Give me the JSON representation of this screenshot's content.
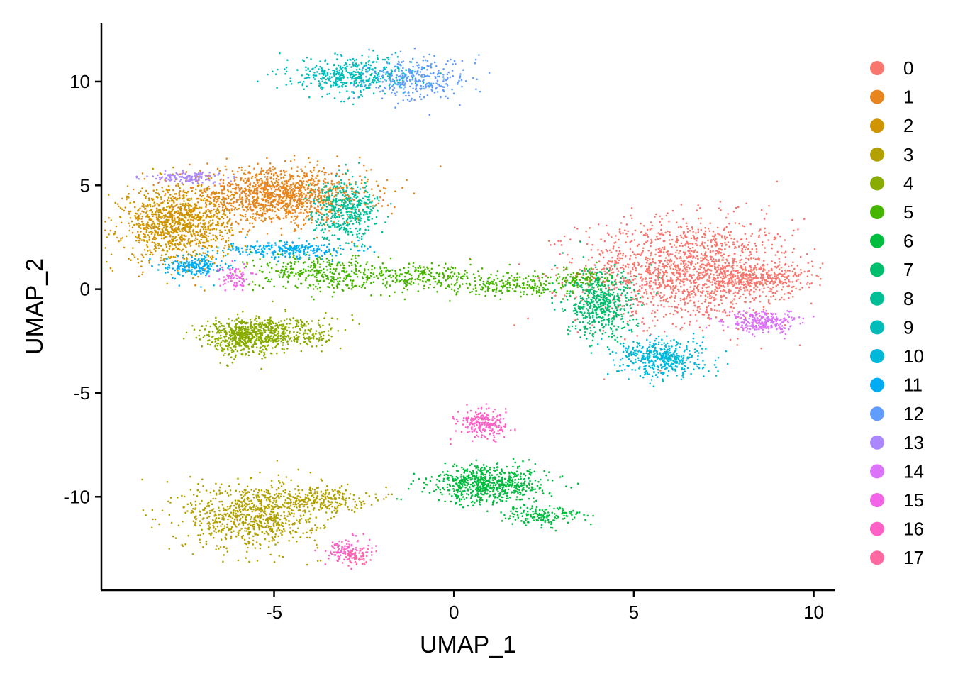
{
  "chart_data": {
    "type": "scatter",
    "xlabel": "UMAP_1",
    "ylabel": "UMAP_2",
    "xlim": [
      -9.8,
      10.6
    ],
    "ylim": [
      -14.5,
      12.8
    ],
    "x_ticks": [
      -5,
      0,
      5,
      10
    ],
    "y_ticks": [
      -10,
      -5,
      0,
      5,
      10
    ],
    "x_tick_labels": [
      "-5",
      "0",
      "5",
      "10"
    ],
    "y_tick_labels": [
      "-10",
      "-5",
      "0",
      "5",
      "10"
    ],
    "legend_position": "right",
    "grid": false,
    "series": [
      {
        "name": "0",
        "color": "#F8766D",
        "clusters": [
          {
            "cx": 6.5,
            "cy": 0.9,
            "sx": 1.5,
            "sy": 1.25,
            "n": 1600
          },
          {
            "cx": 8.4,
            "cy": 0.5,
            "sx": 0.7,
            "sy": 0.35,
            "n": 300
          }
        ]
      },
      {
        "name": "1",
        "color": "#E7851E",
        "clusters": [
          {
            "cx": -4.9,
            "cy": 4.5,
            "sx": 1.25,
            "sy": 0.65,
            "n": 1300
          }
        ]
      },
      {
        "name": "2",
        "color": "#D09400",
        "clusters": [
          {
            "cx": -7.7,
            "cy": 3.1,
            "sx": 0.75,
            "sy": 0.9,
            "n": 1100
          }
        ]
      },
      {
        "name": "3",
        "color": "#B2A100",
        "clusters": [
          {
            "cx": -5.6,
            "cy": -10.9,
            "sx": 0.95,
            "sy": 0.8,
            "n": 800
          },
          {
            "cx": -3.8,
            "cy": -10.1,
            "sx": 0.7,
            "sy": 0.3,
            "n": 250
          }
        ]
      },
      {
        "name": "4",
        "color": "#89AC00",
        "clusters": [
          {
            "cx": -5.9,
            "cy": -2.3,
            "sx": 0.55,
            "sy": 0.45,
            "n": 500
          },
          {
            "cx": -4.7,
            "cy": -2.1,
            "sx": 0.8,
            "sy": 0.4,
            "n": 350
          }
        ]
      },
      {
        "name": "5",
        "color": "#45B500",
        "clusters": [
          {
            "cx": -3.8,
            "cy": 0.8,
            "sx": 0.9,
            "sy": 0.45,
            "n": 350
          },
          {
            "cx": -1.0,
            "cy": 0.6,
            "sx": 0.9,
            "sy": 0.3,
            "n": 220
          },
          {
            "cx": 1.6,
            "cy": 0.2,
            "sx": 0.9,
            "sy": 0.3,
            "n": 220
          },
          {
            "cx": 3.6,
            "cy": 0.5,
            "sx": 0.4,
            "sy": 0.25,
            "n": 100
          }
        ]
      },
      {
        "name": "6",
        "color": "#00BC3F",
        "clusters": [
          {
            "cx": 1.0,
            "cy": -9.4,
            "sx": 0.8,
            "sy": 0.45,
            "n": 700
          },
          {
            "cx": 2.4,
            "cy": -10.9,
            "sx": 0.55,
            "sy": 0.25,
            "n": 150
          }
        ]
      },
      {
        "name": "7",
        "color": "#00BE6D",
        "clusters": [
          {
            "cx": 4.1,
            "cy": -0.8,
            "sx": 0.5,
            "sy": 0.8,
            "n": 500
          }
        ]
      },
      {
        "name": "8",
        "color": "#00BF96",
        "clusters": [
          {
            "cx": -3.0,
            "cy": 3.8,
            "sx": 0.45,
            "sy": 0.7,
            "n": 450
          }
        ]
      },
      {
        "name": "9",
        "color": "#00BDBA",
        "clusters": [
          {
            "cx": -2.8,
            "cy": 10.3,
            "sx": 0.85,
            "sy": 0.45,
            "n": 450
          }
        ]
      },
      {
        "name": "10",
        "color": "#00B8DA",
        "clusters": [
          {
            "cx": 5.8,
            "cy": -3.3,
            "sx": 0.6,
            "sy": 0.45,
            "n": 450
          }
        ]
      },
      {
        "name": "11",
        "color": "#00ADF5",
        "clusters": [
          {
            "cx": -7.2,
            "cy": 1.1,
            "sx": 0.4,
            "sy": 0.25,
            "n": 200
          },
          {
            "cx": -4.6,
            "cy": 1.9,
            "sx": 0.9,
            "sy": 0.2,
            "n": 250
          }
        ]
      },
      {
        "name": "12",
        "color": "#619CFF",
        "clusters": [
          {
            "cx": -1.0,
            "cy": 10.1,
            "sx": 0.7,
            "sy": 0.5,
            "n": 300
          }
        ]
      },
      {
        "name": "13",
        "color": "#AC88FF",
        "clusters": [
          {
            "cx": -7.5,
            "cy": 5.4,
            "sx": 0.55,
            "sy": 0.15,
            "n": 120
          }
        ]
      },
      {
        "name": "14",
        "color": "#DC71FA",
        "clusters": [
          {
            "cx": 8.6,
            "cy": -1.6,
            "sx": 0.5,
            "sy": 0.25,
            "n": 250
          }
        ]
      },
      {
        "name": "15",
        "color": "#F265E8",
        "clusters": [
          {
            "cx": -6.1,
            "cy": 0.6,
            "sx": 0.2,
            "sy": 0.3,
            "n": 80
          }
        ]
      },
      {
        "name": "16",
        "color": "#FF61C6",
        "clusters": [
          {
            "cx": 0.8,
            "cy": -6.5,
            "sx": 0.35,
            "sy": 0.35,
            "n": 220
          },
          {
            "cx": -3.0,
            "cy": -12.6,
            "sx": 0.3,
            "sy": 0.3,
            "n": 120
          }
        ]
      },
      {
        "name": "17",
        "color": "#FF68A1",
        "clusters": [
          {
            "cx": -2.7,
            "cy": -12.9,
            "sx": 0.2,
            "sy": 0.2,
            "n": 50
          }
        ]
      }
    ]
  }
}
